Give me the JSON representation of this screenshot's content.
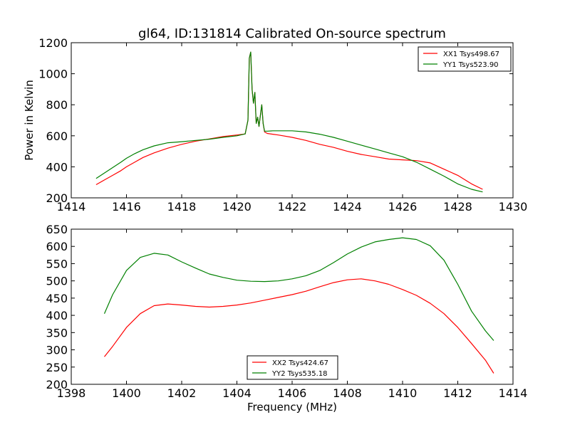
{
  "figure": {
    "title": "gl64, ID:131814 Calibrated On-source spectrum",
    "xlabel": "Frequency (MHz)",
    "ylabel": "Power in Kelvin"
  },
  "chart_data": [
    {
      "type": "line",
      "title": "gl64, ID:131814 Calibrated On-source spectrum",
      "xlabel": "",
      "ylabel": "Power in Kelvin",
      "xlim": [
        1414,
        1430
      ],
      "ylim": [
        200,
        1200
      ],
      "xticks": [
        1414,
        1416,
        1418,
        1420,
        1422,
        1424,
        1426,
        1428,
        1430
      ],
      "yticks": [
        200,
        400,
        600,
        800,
        1000,
        1200
      ],
      "grid": false,
      "legend": "top-right",
      "series": [
        {
          "name": "XX1 Tsys498.67",
          "color": "#ff0000",
          "x": [
            1414.9,
            1415.2,
            1415.5,
            1415.8,
            1416.0,
            1416.3,
            1416.6,
            1417.0,
            1417.5,
            1418.0,
            1418.5,
            1419.0,
            1419.5,
            1420.0,
            1420.3,
            1420.4,
            1420.45,
            1420.5,
            1420.55,
            1420.6,
            1420.65,
            1420.7,
            1420.75,
            1420.8,
            1420.85,
            1420.9,
            1420.95,
            1421.0,
            1421.1,
            1421.3,
            1421.5,
            1422.0,
            1422.5,
            1423.0,
            1423.5,
            1424.0,
            1424.5,
            1425.0,
            1425.5,
            1426.0,
            1426.5,
            1427.0,
            1427.5,
            1428.0,
            1428.5,
            1428.9
          ],
          "y": [
            285,
            315,
            345,
            375,
            400,
            430,
            460,
            490,
            520,
            545,
            565,
            580,
            595,
            605,
            612,
            700,
            1100,
            1140,
            900,
            810,
            880,
            680,
            720,
            660,
            730,
            800,
            680,
            625,
            615,
            610,
            605,
            590,
            570,
            545,
            525,
            500,
            480,
            465,
            450,
            445,
            440,
            425,
            385,
            345,
            290,
            255
          ]
        },
        {
          "name": "YY1 Tsys523.90",
          "color": "#008000",
          "x": [
            1414.9,
            1415.2,
            1415.5,
            1415.8,
            1416.0,
            1416.3,
            1416.6,
            1417.0,
            1417.5,
            1418.0,
            1418.5,
            1419.0,
            1419.5,
            1420.0,
            1420.3,
            1420.4,
            1420.45,
            1420.5,
            1420.55,
            1420.6,
            1420.65,
            1420.7,
            1420.75,
            1420.8,
            1420.85,
            1420.9,
            1420.95,
            1421.0,
            1421.1,
            1421.3,
            1421.5,
            1422.0,
            1422.5,
            1423.0,
            1423.5,
            1424.0,
            1424.5,
            1425.0,
            1425.5,
            1426.0,
            1426.5,
            1427.0,
            1427.5,
            1428.0,
            1428.5,
            1428.9
          ],
          "y": [
            325,
            360,
            395,
            430,
            455,
            485,
            510,
            535,
            555,
            562,
            570,
            578,
            590,
            600,
            612,
            700,
            1100,
            1140,
            900,
            810,
            880,
            680,
            720,
            660,
            730,
            800,
            680,
            630,
            630,
            632,
            632,
            632,
            625,
            610,
            590,
            565,
            540,
            515,
            490,
            465,
            430,
            385,
            340,
            290,
            255,
            238
          ]
        }
      ]
    },
    {
      "type": "line",
      "title": "",
      "xlabel": "Frequency (MHz)",
      "ylabel": "",
      "xlim": [
        1398,
        1414
      ],
      "ylim": [
        200,
        650
      ],
      "xticks": [
        1398,
        1400,
        1402,
        1404,
        1406,
        1408,
        1410,
        1412,
        1414
      ],
      "yticks": [
        200,
        250,
        300,
        350,
        400,
        450,
        500,
        550,
        600,
        650
      ],
      "grid": false,
      "legend": "bottom-center",
      "series": [
        {
          "name": "XX2 Tsys424.67",
          "color": "#ff0000",
          "x": [
            1399.2,
            1399.5,
            1400.0,
            1400.5,
            1401.0,
            1401.5,
            1402.0,
            1402.5,
            1403.0,
            1403.5,
            1404.0,
            1404.5,
            1405.0,
            1405.5,
            1406.0,
            1406.5,
            1407.0,
            1407.5,
            1408.0,
            1408.5,
            1409.0,
            1409.5,
            1410.0,
            1410.5,
            1411.0,
            1411.5,
            1412.0,
            1412.5,
            1413.0,
            1413.3
          ],
          "y": [
            280,
            310,
            365,
            405,
            428,
            433,
            430,
            426,
            424,
            426,
            430,
            436,
            444,
            452,
            460,
            470,
            483,
            495,
            503,
            506,
            500,
            490,
            475,
            458,
            435,
            405,
            365,
            318,
            270,
            232
          ]
        },
        {
          "name": "YY2 Tsys535.18",
          "color": "#008000",
          "x": [
            1399.2,
            1399.5,
            1400.0,
            1400.5,
            1401.0,
            1401.5,
            1402.0,
            1402.5,
            1403.0,
            1403.5,
            1404.0,
            1404.5,
            1405.0,
            1405.5,
            1406.0,
            1406.5,
            1407.0,
            1407.5,
            1408.0,
            1408.5,
            1409.0,
            1409.5,
            1410.0,
            1410.5,
            1411.0,
            1411.5,
            1412.0,
            1412.5,
            1413.0,
            1413.3
          ],
          "y": [
            405,
            460,
            530,
            568,
            580,
            575,
            555,
            537,
            520,
            510,
            502,
            499,
            498,
            500,
            506,
            515,
            530,
            553,
            578,
            598,
            613,
            620,
            625,
            620,
            602,
            560,
            490,
            412,
            355,
            327
          ]
        }
      ]
    }
  ]
}
